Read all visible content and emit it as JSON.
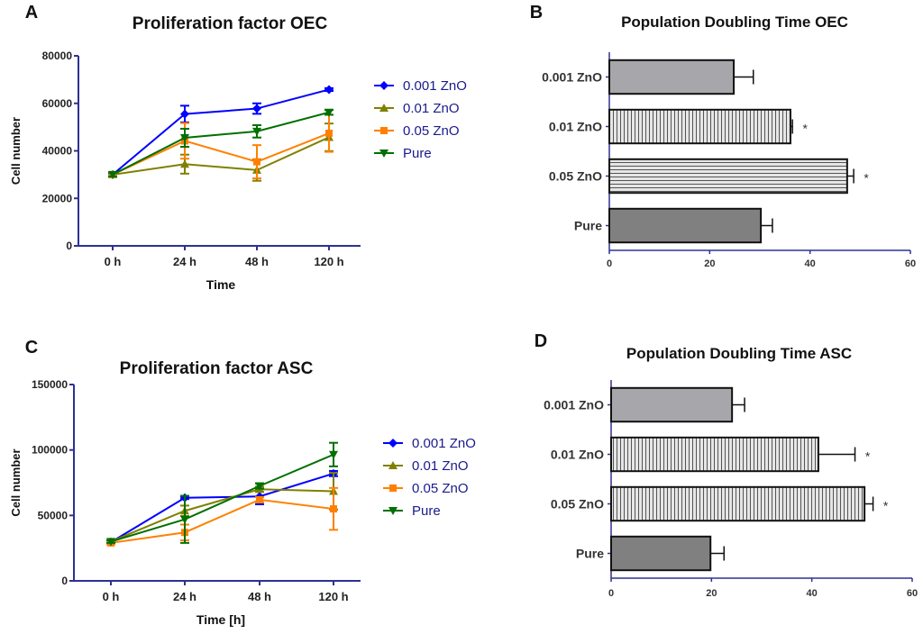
{
  "chart_data": [
    {
      "panel_label": "A",
      "type": "line",
      "title": "Proliferation factor OEC",
      "xlabel": "Time",
      "ylabel": "Cell number",
      "categories": [
        "0 h",
        "24 h",
        "48 h",
        "120 h"
      ],
      "ylim": [
        0,
        80000
      ],
      "yticks": [
        0,
        20000,
        40000,
        60000,
        80000
      ],
      "legend_position": "right",
      "series": [
        {
          "name": "0.001 ZnO",
          "color": "#0000ff",
          "marker": "diamond",
          "values": [
            30000,
            55500,
            57800,
            65800
          ],
          "errors": [
            800,
            3500,
            2200,
            600
          ]
        },
        {
          "name": "0.01 ZnO",
          "color": "#808000",
          "marker": "triangle-up",
          "values": [
            30000,
            34400,
            31900,
            45700
          ],
          "errors": [
            800,
            4000,
            4500,
            5800
          ]
        },
        {
          "name": "0.05 ZnO",
          "color": "#ff8000",
          "marker": "square",
          "values": [
            30000,
            44200,
            35400,
            47400
          ],
          "errors": [
            800,
            7500,
            7000,
            7800
          ]
        },
        {
          "name": "Pure",
          "color": "#007000",
          "marker": "triangle-down",
          "values": [
            30000,
            45500,
            48200,
            56200
          ],
          "errors": [
            800,
            3800,
            2600,
            1000
          ]
        }
      ]
    },
    {
      "panel_label": "B",
      "type": "bar",
      "orientation": "horizontal",
      "title": "Population Doubling Time OEC",
      "xlabel": "",
      "ylabel": "",
      "categories": [
        "0.001 ZnO",
        "0.01 ZnO",
        "0.05 ZnO",
        "Pure"
      ],
      "values": [
        24.8,
        36.1,
        47.4,
        30.2
      ],
      "errors": [
        3.9,
        0.4,
        1.3,
        2.3
      ],
      "significance": [
        "",
        "*",
        "*",
        ""
      ],
      "fills": [
        "solid-light",
        "vertical-stripes",
        "horizontal-stripes",
        "solid-dark"
      ],
      "xlim": [
        0,
        60
      ],
      "xticks": [
        0,
        20,
        40,
        60
      ]
    },
    {
      "panel_label": "C",
      "type": "line",
      "title": "Proliferation factor ASC",
      "xlabel": "Time [h]",
      "ylabel": "Cell number",
      "categories": [
        "0 h",
        "24 h",
        "48 h",
        "120 h"
      ],
      "ylim": [
        0,
        150000
      ],
      "yticks": [
        0,
        50000,
        100000,
        150000
      ],
      "legend_position": "right",
      "series": [
        {
          "name": "0.001 ZnO",
          "color": "#0000ff",
          "marker": "diamond",
          "values": [
            29500,
            63500,
            64500,
            82000
          ],
          "errors": [
            1000,
            1000,
            6000,
            2000
          ]
        },
        {
          "name": "0.01 ZnO",
          "color": "#808000",
          "marker": "triangle-up",
          "values": [
            30000,
            53500,
            70000,
            68500
          ],
          "errors": [
            1000,
            4000,
            2000,
            14000
          ]
        },
        {
          "name": "0.05 ZnO",
          "color": "#ff8000",
          "marker": "square",
          "values": [
            29000,
            37000,
            62000,
            55000
          ],
          "errors": [
            1000,
            6000,
            2000,
            16000
          ]
        },
        {
          "name": "Pure",
          "color": "#007000",
          "marker": "triangle-down",
          "values": [
            30000,
            47000,
            72500,
            96500
          ],
          "errors": [
            1000,
            18000,
            2000,
            9000
          ]
        }
      ]
    },
    {
      "panel_label": "D",
      "type": "bar",
      "orientation": "horizontal",
      "title": "Population Doubling Time ASC",
      "xlabel": "",
      "ylabel": "",
      "categories": [
        "0.001 ZnO",
        "0.01 ZnO",
        "0.05 ZnO",
        "Pure"
      ],
      "values": [
        24.1,
        41.3,
        50.5,
        19.8
      ],
      "errors": [
        2.5,
        7.3,
        1.7,
        2.7
      ],
      "significance": [
        "",
        "*",
        "*",
        ""
      ],
      "fills": [
        "solid-light",
        "vertical-stripes",
        "vertical-stripes",
        "solid-dark"
      ],
      "xlim": [
        0,
        60
      ],
      "xticks": [
        0,
        20,
        40,
        60
      ]
    }
  ]
}
